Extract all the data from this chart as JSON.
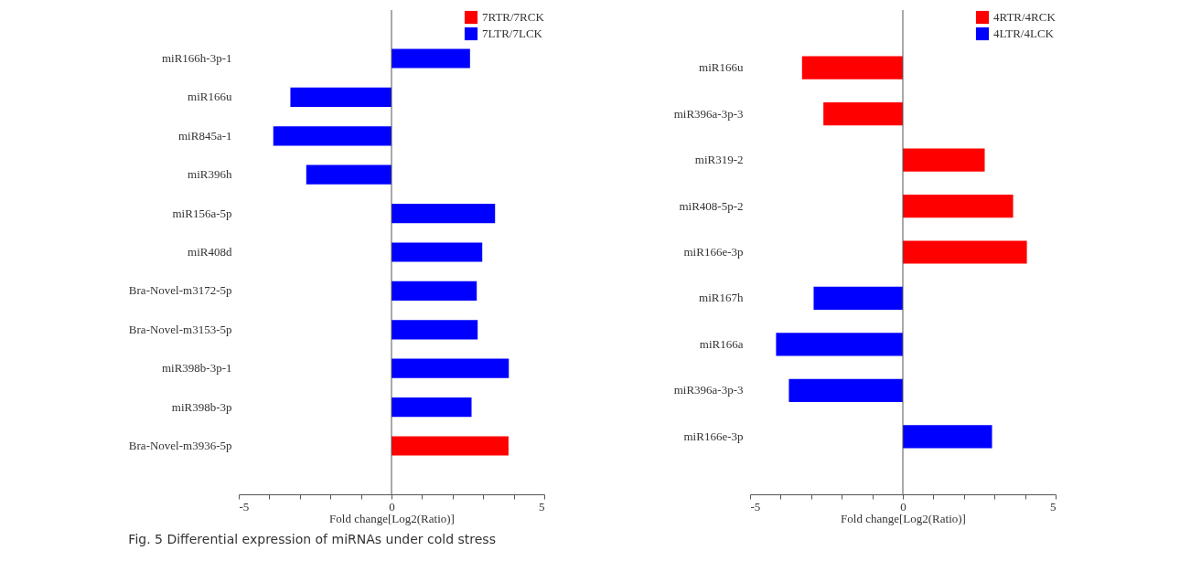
{
  "chart_data": [
    {
      "type": "bar",
      "orientation": "horizontal",
      "legend": "top right",
      "grid": false,
      "categories": [
        "miR166h-3p-1",
        "miR166u",
        "miR845a-1",
        "miR396h",
        "miR156a-5p",
        "miR408d",
        "Bra-Novel-m3172-5p",
        "Bra-Novel-m3153-5p",
        "miR398b-3p-1",
        "miR398b-3p",
        "Bra-Novel-m3936-5p"
      ],
      "series": [
        {
          "name": "7RTR/7RCK",
          "color": "#ff0000",
          "values": [
            null,
            null,
            null,
            null,
            null,
            null,
            null,
            null,
            null,
            null,
            3.83
          ]
        },
        {
          "name": "7LTR/7LCK",
          "color": "#0000ff",
          "values": [
            2.57,
            -3.31,
            -3.87,
            -2.79,
            3.39,
            2.97,
            2.79,
            2.82,
            3.84,
            2.62,
            null
          ]
        }
      ],
      "xlim": [
        -5,
        5
      ],
      "xticks": [
        -5,
        {
          "value": -4,
          "label": null
        },
        {
          "value": -3,
          "label": null
        },
        {
          "value": -2,
          "label": null
        },
        {
          "value": -1,
          "label": null
        },
        0,
        {
          "value": 1,
          "label": null
        },
        {
          "value": 2,
          "label": null
        },
        {
          "value": 3,
          "label": null
        },
        {
          "value": 4,
          "label": null
        },
        5
      ],
      "xlabel": "Fold change[Log2(Ratio)]",
      "ref_lines": [
        {
          "axis": "x",
          "value": 0,
          "color": "#555555"
        }
      ],
      "annotations": [
        "Fig. 5 Differential expression of miRNAs under cold stress"
      ]
    },
    {
      "type": "bar",
      "orientation": "horizontal",
      "legend": "top right",
      "grid": false,
      "categories": [
        "miR166u",
        "miR396a-3p-3",
        "miR319-2",
        "miR408-5p-2",
        "miR166e-3p",
        "miR167h",
        "miR166a",
        "miR396a-3p-3",
        "miR166e-3p"
      ],
      "series": [
        {
          "name": "4RTR/4RCK",
          "color": "#ff0000",
          "values": [
            -3.3,
            -2.6,
            2.68,
            3.61,
            4.06,
            null,
            null,
            null,
            null
          ]
        },
        {
          "name": "4LTR/4LCK",
          "color": "#0000ff",
          "values": [
            null,
            null,
            null,
            null,
            null,
            -2.92,
            -4.15,
            -3.73,
            2.92
          ]
        }
      ],
      "xlim": [
        -5,
        5
      ],
      "xticks": [
        -5,
        {
          "value": -4,
          "label": null
        },
        {
          "value": -3,
          "label": null
        },
        {
          "value": -2,
          "label": null
        },
        {
          "value": -1,
          "label": null
        },
        0,
        {
          "value": 1,
          "label": null
        },
        {
          "value": 2,
          "label": null
        },
        {
          "value": 3,
          "label": null
        },
        {
          "value": 4,
          "label": null
        },
        5
      ],
      "xlabel": "Fold change[Log2(Ratio)]",
      "ref_lines": [
        {
          "axis": "x",
          "value": 0,
          "color": "#555555"
        }
      ]
    }
  ]
}
